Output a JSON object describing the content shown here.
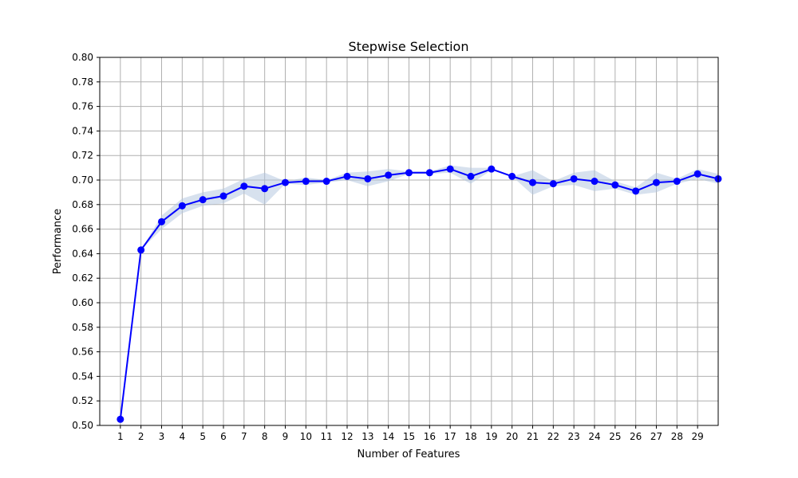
{
  "chart_data": {
    "type": "line",
    "title": "Stepwise Selection",
    "xlabel": "Number of Features",
    "ylabel": "Performance",
    "xlim": [
      0,
      30
    ],
    "ylim": [
      0.5,
      0.8
    ],
    "grid": true,
    "x": [
      1,
      2,
      3,
      4,
      5,
      6,
      7,
      8,
      9,
      10,
      11,
      12,
      13,
      14,
      15,
      16,
      17,
      18,
      19,
      20,
      21,
      22,
      23,
      24,
      25,
      26,
      27,
      28,
      29,
      30
    ],
    "x_ticks": [
      1,
      2,
      3,
      4,
      5,
      6,
      7,
      8,
      9,
      10,
      11,
      12,
      13,
      14,
      15,
      16,
      17,
      18,
      19,
      20,
      21,
      22,
      23,
      24,
      25,
      26,
      27,
      28,
      29
    ],
    "y_ticks": [
      0.5,
      0.52,
      0.54,
      0.56,
      0.58,
      0.6,
      0.62,
      0.64,
      0.66,
      0.68,
      0.7,
      0.72,
      0.74,
      0.76,
      0.78,
      0.8
    ],
    "series": [
      {
        "values": [
          0.505,
          0.643,
          0.666,
          0.679,
          0.684,
          0.687,
          0.695,
          0.693,
          0.698,
          0.699,
          0.699,
          0.703,
          0.701,
          0.704,
          0.706,
          0.706,
          0.709,
          0.703,
          0.709,
          0.703,
          0.698,
          0.697,
          0.701,
          0.699,
          0.696,
          0.691,
          0.698,
          0.699,
          0.705,
          0.701
        ],
        "upper": [
          0.505,
          0.643,
          0.671,
          0.685,
          0.69,
          0.693,
          0.701,
          0.706,
          0.699,
          0.702,
          0.7,
          0.706,
          0.707,
          0.709,
          0.707,
          0.707,
          0.712,
          0.71,
          0.71,
          0.703,
          0.708,
          0.699,
          0.706,
          0.708,
          0.699,
          0.694,
          0.706,
          0.701,
          0.709,
          0.705
        ],
        "lower": [
          0.505,
          0.643,
          0.66,
          0.673,
          0.679,
          0.681,
          0.689,
          0.68,
          0.697,
          0.696,
          0.698,
          0.7,
          0.695,
          0.699,
          0.705,
          0.705,
          0.706,
          0.697,
          0.708,
          0.703,
          0.688,
          0.695,
          0.696,
          0.691,
          0.693,
          0.688,
          0.69,
          0.697,
          0.701,
          0.697
        ]
      }
    ],
    "colors": {
      "line": "#0000ff",
      "band": "#b0c4de",
      "grid": "#b0b0b0"
    }
  }
}
